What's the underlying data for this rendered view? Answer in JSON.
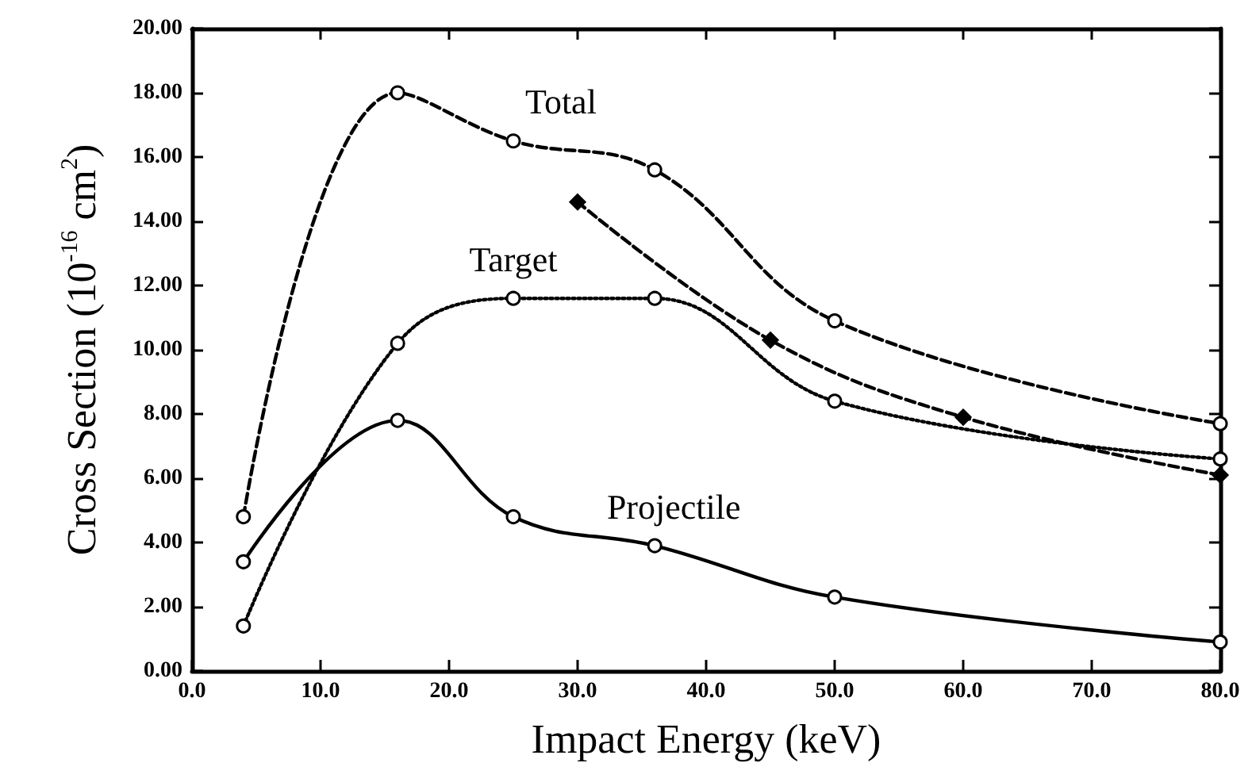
{
  "chart_data": {
    "type": "line",
    "xlabel": "Impact Energy (keV)",
    "ylabel": "Cross Section (10$^{-16}$ cm$^{2}$)",
    "xlim": [
      0,
      80
    ],
    "ylim": [
      0,
      20
    ],
    "xticks": [
      {
        "value": 0,
        "label": "0.0"
      },
      {
        "value": 10,
        "label": "10.0"
      },
      {
        "value": 20,
        "label": "20.0"
      },
      {
        "value": 30,
        "label": "30.0"
      },
      {
        "value": 40,
        "label": "40.0"
      },
      {
        "value": 50,
        "label": "50.0"
      },
      {
        "value": 60,
        "label": "60.0"
      },
      {
        "value": 70,
        "label": "70.0"
      },
      {
        "value": 80,
        "label": "80.0"
      }
    ],
    "yticks": [
      {
        "value": 0,
        "label": "0.00"
      },
      {
        "value": 2,
        "label": "2.00"
      },
      {
        "value": 4,
        "label": "4.00"
      },
      {
        "value": 6,
        "label": "6.00"
      },
      {
        "value": 8,
        "label": "8.00"
      },
      {
        "value": 10,
        "label": "10.00"
      },
      {
        "value": 12,
        "label": "12.00"
      },
      {
        "value": 14,
        "label": "14.00"
      },
      {
        "value": 16,
        "label": "16.00"
      },
      {
        "value": 18,
        "label": "18.00"
      },
      {
        "value": 20,
        "label": "20.00"
      }
    ],
    "grid": false,
    "legend": false,
    "series": [
      {
        "name": "Total",
        "color": "#000000",
        "line_style": "dashed",
        "marker": "circle",
        "x": [
          4,
          16,
          25,
          36,
          50,
          80
        ],
        "values": [
          4.8,
          18.0,
          16.5,
          15.6,
          10.9,
          7.7
        ]
      },
      {
        "name": "Target",
        "color": "#000000",
        "line_style": "dotted",
        "marker": "circle",
        "x": [
          4,
          16,
          25,
          36,
          50,
          80
        ],
        "values": [
          1.4,
          10.2,
          11.6,
          11.6,
          8.4,
          6.6
        ]
      },
      {
        "name": "Projectile",
        "color": "#000000",
        "line_style": "solid",
        "marker": "circle",
        "x": [
          4,
          16,
          25,
          36,
          50,
          80
        ],
        "values": [
          3.4,
          7.8,
          4.8,
          3.9,
          2.3,
          0.9
        ]
      },
      {
        "color": "#000000",
        "line_style": "dashed",
        "marker": "diamond",
        "x": [
          30,
          45,
          60,
          80
        ],
        "values": [
          14.6,
          10.3,
          7.9,
          6.1
        ]
      }
    ]
  }
}
